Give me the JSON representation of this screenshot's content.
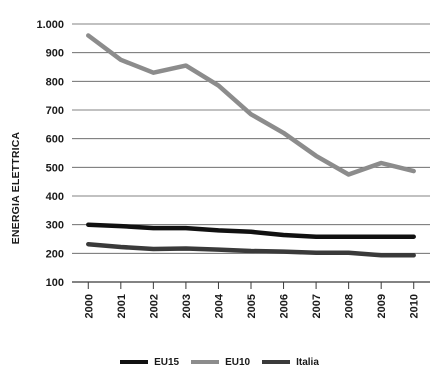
{
  "chart_data": {
    "type": "line",
    "title": "",
    "xlabel": "",
    "ylabel": "ENERGIA ELETTRICA",
    "x": [
      "2000",
      "2001",
      "2002",
      "2003",
      "2004",
      "2005",
      "2006",
      "2007",
      "2008",
      "2009",
      "2010"
    ],
    "ylim": [
      100,
      1000
    ],
    "yticks": [
      100,
      200,
      300,
      400,
      500,
      600,
      700,
      800,
      900,
      1000
    ],
    "ytick_labels": [
      "100",
      "200",
      "300",
      "400",
      "500",
      "600",
      "700",
      "800",
      "900",
      "1.000"
    ],
    "grid": "horizontal",
    "legend_position": "bottom",
    "series": [
      {
        "name": "EU15",
        "color": "#111111",
        "values": [
          300,
          295,
          288,
          288,
          280,
          275,
          264,
          258,
          258,
          258,
          258
        ]
      },
      {
        "name": "EU10",
        "color": "#8c8c8c",
        "values": [
          960,
          875,
          830,
          855,
          785,
          685,
          620,
          540,
          475,
          515,
          487
        ]
      },
      {
        "name": "Italia",
        "color": "#3a3a3a",
        "values": [
          232,
          222,
          215,
          217,
          213,
          208,
          206,
          202,
          202,
          193,
          193
        ]
      }
    ]
  }
}
